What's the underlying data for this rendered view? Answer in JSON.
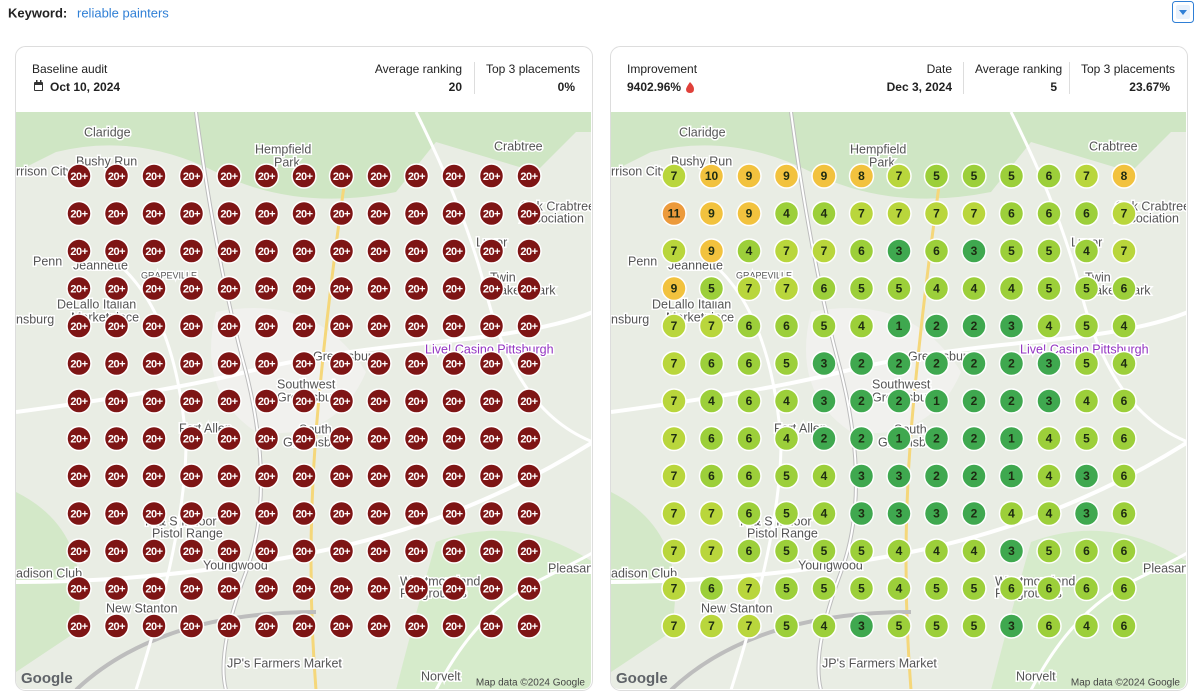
{
  "keyword_label": "Keyword:",
  "keyword": "reliable painters",
  "baseline": {
    "title": "Baseline audit",
    "date": "Oct 10, 2024",
    "avg_label": "Average ranking",
    "avg": 20,
    "top3_label": "Top 3 placements",
    "top3": "0%",
    "grid": [
      [
        "20+",
        "20+",
        "20+",
        "20+",
        "20+",
        "20+",
        "20+",
        "20+",
        "20+",
        "20+",
        "20+",
        "20+",
        "20+"
      ],
      [
        "20+",
        "20+",
        "20+",
        "20+",
        "20+",
        "20+",
        "20+",
        "20+",
        "20+",
        "20+",
        "20+",
        "20+",
        "20+"
      ],
      [
        "20+",
        "20+",
        "20+",
        "20+",
        "20+",
        "20+",
        "20+",
        "20+",
        "20+",
        "20+",
        "20+",
        "20+",
        "20+"
      ],
      [
        "20+",
        "20+",
        "20+",
        "20+",
        "20+",
        "20+",
        "20+",
        "20+",
        "20+",
        "20+",
        "20+",
        "20+",
        "20+"
      ],
      [
        "20+",
        "20+",
        "20+",
        "20+",
        "20+",
        "20+",
        "20+",
        "20+",
        "20+",
        "20+",
        "20+",
        "20+",
        "20+"
      ],
      [
        "20+",
        "20+",
        "20+",
        "20+",
        "20+",
        "20+",
        "20+",
        "20+",
        "20+",
        "20+",
        "20+",
        "20+",
        "20+"
      ],
      [
        "20+",
        "20+",
        "20+",
        "20+",
        "20+",
        "20+",
        "20+",
        "20+",
        "20+",
        "20+",
        "20+",
        "20+",
        "20+"
      ],
      [
        "20+",
        "20+",
        "20+",
        "20+",
        "20+",
        "20+",
        "20+",
        "20+",
        "20+",
        "20+",
        "20+",
        "20+",
        "20+"
      ],
      [
        "20+",
        "20+",
        "20+",
        "20+",
        "20+",
        "20+",
        "20+",
        "20+",
        "20+",
        "20+",
        "20+",
        "20+",
        "20+"
      ],
      [
        "20+",
        "20+",
        "20+",
        "20+",
        "20+",
        "20+",
        "20+",
        "20+",
        "20+",
        "20+",
        "20+",
        "20+",
        "20+"
      ],
      [
        "20+",
        "20+",
        "20+",
        "20+",
        "20+",
        "20+",
        "20+",
        "20+",
        "20+",
        "20+",
        "20+",
        "20+",
        "20+"
      ],
      [
        "20+",
        "20+",
        "20+",
        "20+",
        "20+",
        "20+",
        "20+",
        "20+",
        "20+",
        "20+",
        "20+",
        "20+",
        "20+"
      ],
      [
        "20+",
        "20+",
        "20+",
        "20+",
        "20+",
        "20+",
        "20+",
        "20+",
        "20+",
        "20+",
        "20+",
        "20+",
        "20+"
      ]
    ]
  },
  "current": {
    "improvement_label": "Improvement",
    "improvement": "9402.96%",
    "date_label": "Date",
    "date": "Dec 3, 2024",
    "avg_label": "Average ranking",
    "avg": 5,
    "top3_label": "Top 3 placements",
    "top3": "23.67%",
    "grid": [
      [
        7,
        10,
        9,
        9,
        9,
        8,
        7,
        5,
        5,
        5,
        6,
        7,
        8
      ],
      [
        11,
        9,
        9,
        4,
        4,
        7,
        7,
        7,
        7,
        6,
        6,
        6,
        7
      ],
      [
        7,
        9,
        4,
        7,
        7,
        6,
        3,
        6,
        3,
        5,
        5,
        4,
        7
      ],
      [
        9,
        5,
        7,
        7,
        6,
        5,
        5,
        4,
        4,
        4,
        5,
        5,
        6
      ],
      [
        7,
        7,
        6,
        6,
        5,
        4,
        1,
        2,
        2,
        3,
        4,
        5,
        4
      ],
      [
        7,
        6,
        6,
        5,
        3,
        2,
        2,
        2,
        2,
        2,
        3,
        5,
        4
      ],
      [
        7,
        4,
        6,
        4,
        3,
        2,
        2,
        1,
        2,
        2,
        3,
        4,
        6
      ],
      [
        7,
        6,
        6,
        4,
        2,
        2,
        1,
        2,
        2,
        1,
        4,
        5,
        6
      ],
      [
        7,
        6,
        6,
        5,
        4,
        3,
        3,
        2,
        2,
        1,
        4,
        3,
        6
      ],
      [
        7,
        7,
        6,
        5,
        4,
        3,
        3,
        3,
        2,
        4,
        4,
        3,
        6
      ],
      [
        7,
        7,
        6,
        5,
        5,
        5,
        4,
        4,
        4,
        3,
        5,
        6,
        6
      ],
      [
        7,
        6,
        7,
        5,
        5,
        5,
        4,
        5,
        5,
        6,
        6,
        6,
        6
      ],
      [
        7,
        7,
        7,
        5,
        4,
        3,
        5,
        5,
        5,
        3,
        6,
        4,
        6
      ]
    ]
  },
  "map": {
    "labels": [
      "Claridge",
      "Hempfield",
      "Park",
      "Crabtree",
      "Bushy Run",
      "rrison City",
      "Penn",
      "Jeannette",
      "GRAPEVILLE",
      "DeLallo Italian",
      "Marketplace",
      "nsburg",
      "Live! Casino Pittsburgh",
      "Greensburg",
      "Southwest",
      "Greensburg",
      "Fort Allen",
      "South",
      "Greensburg",
      "R & S Indoor",
      "Pistol Range",
      "Youngwood",
      "Pleasant Uni",
      "adison Club",
      "Westmoreland",
      "Fairgrounds",
      "New Stanton",
      "JP's Farmers Market",
      "Norvelt",
      "Luxor",
      "Twin",
      "Lakes Park",
      "Oak Crabtree",
      "Association"
    ],
    "attribution": "Map data ©2024 Google",
    "logo": "Google"
  }
}
